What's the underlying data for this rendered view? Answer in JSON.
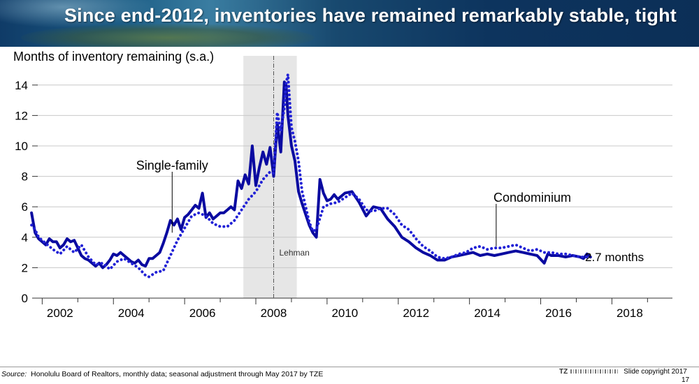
{
  "title": "Since end-2012, inventories have remained remarkably stable, tight",
  "footer": {
    "source_label": "Source:",
    "source_text": "Honolulu Board of Realtors, monthly data; seasonal adjustment through May 2017 by TZE",
    "brand": "TZ",
    "copyright": "Slide copyright 2017",
    "page_number": "17"
  },
  "colors": {
    "single_family": "#0a0aa0",
    "condominium": "#2121d6",
    "shade": "#e6e6e6",
    "grid": "#c8c8c8",
    "header": "#0f3b67"
  },
  "chart_data": {
    "type": "line",
    "ylabel": "Months of inventory remaining (s.a.)",
    "xlabel": "",
    "xlim": [
      2001.6,
      2019.7
    ],
    "ylim": [
      0,
      15
    ],
    "yticks": [
      0,
      2,
      4,
      6,
      8,
      10,
      12,
      14
    ],
    "xticks": [
      "2002",
      "2004",
      "2006",
      "2008",
      "2010",
      "2012",
      "2014",
      "2016",
      "2018"
    ],
    "grid": "horizontal",
    "shaded_region": {
      "x0": 2007.65,
      "x1": 2009.15,
      "label": ""
    },
    "event_line": {
      "x": 2008.5,
      "label": "Lehman"
    },
    "end_label": "2.7 months",
    "series": [
      {
        "name": "Single-family",
        "style": "solid",
        "x": [
          2001.7,
          2001.8,
          2001.9,
          2002.0,
          2002.1,
          2002.2,
          2002.3,
          2002.4,
          2002.5,
          2002.6,
          2002.7,
          2002.8,
          2002.9,
          2003.0,
          2003.1,
          2003.2,
          2003.3,
          2003.4,
          2003.5,
          2003.6,
          2003.7,
          2003.8,
          2003.9,
          2004.0,
          2004.1,
          2004.2,
          2004.3,
          2004.4,
          2004.5,
          2004.6,
          2004.7,
          2004.8,
          2004.9,
          2005.0,
          2005.1,
          2005.2,
          2005.3,
          2005.4,
          2005.5,
          2005.6,
          2005.7,
          2005.8,
          2005.9,
          2006.0,
          2006.1,
          2006.2,
          2006.3,
          2006.4,
          2006.5,
          2006.6,
          2006.7,
          2006.8,
          2006.9,
          2007.0,
          2007.1,
          2007.2,
          2007.3,
          2007.4,
          2007.5,
          2007.6,
          2007.7,
          2007.8,
          2007.9,
          2008.0,
          2008.1,
          2008.2,
          2008.3,
          2008.4,
          2008.5,
          2008.6,
          2008.7,
          2008.8,
          2008.85,
          2008.9,
          2009.0,
          2009.1,
          2009.2,
          2009.3,
          2009.4,
          2009.5,
          2009.6,
          2009.7,
          2009.8,
          2009.9,
          2010.0,
          2010.1,
          2010.2,
          2010.3,
          2010.5,
          2010.7,
          2010.9,
          2011.1,
          2011.3,
          2011.5,
          2011.7,
          2011.9,
          2012.1,
          2012.3,
          2012.5,
          2012.7,
          2012.9,
          2013.1,
          2013.3,
          2013.5,
          2013.7,
          2013.9,
          2014.1,
          2014.3,
          2014.5,
          2014.7,
          2014.9,
          2015.1,
          2015.3,
          2015.5,
          2015.7,
          2015.9,
          2016.1,
          2016.2,
          2016.3,
          2016.5,
          2016.7,
          2016.9,
          2017.1,
          2017.2,
          2017.3,
          2017.4
        ],
        "values": [
          5.6,
          4.3,
          3.9,
          3.7,
          3.5,
          3.9,
          3.7,
          3.7,
          3.3,
          3.5,
          3.9,
          3.7,
          3.8,
          3.3,
          2.8,
          2.6,
          2.5,
          2.3,
          2.1,
          2.3,
          2.0,
          2.2,
          2.5,
          2.9,
          2.8,
          3.0,
          2.8,
          2.6,
          2.4,
          2.3,
          2.5,
          2.2,
          2.1,
          2.6,
          2.6,
          2.8,
          3.0,
          3.6,
          4.3,
          5.1,
          4.8,
          5.2,
          4.5,
          5.3,
          5.5,
          5.8,
          6.1,
          5.9,
          6.9,
          5.3,
          5.6,
          5.2,
          5.4,
          5.6,
          5.6,
          5.8,
          6.0,
          5.8,
          7.7,
          7.2,
          8.1,
          7.5,
          10.0,
          7.4,
          8.6,
          9.6,
          8.8,
          9.9,
          8.0,
          11.5,
          9.6,
          14.2,
          14.0,
          12.0,
          10.0,
          9.0,
          7.0,
          6.2,
          5.5,
          4.8,
          4.3,
          4.0,
          7.8,
          6.9,
          6.4,
          6.5,
          6.8,
          6.5,
          6.9,
          7.0,
          6.3,
          5.4,
          6.0,
          5.9,
          5.2,
          4.7,
          4.0,
          3.7,
          3.3,
          3.0,
          2.8,
          2.5,
          2.5,
          2.7,
          2.8,
          2.9,
          3.0,
          2.8,
          2.9,
          2.8,
          2.9,
          3.0,
          3.1,
          3.0,
          2.9,
          2.8,
          2.3,
          2.9,
          2.8,
          2.8,
          2.7,
          2.8,
          2.7,
          2.6,
          2.9,
          2.7
        ]
      },
      {
        "name": "Condominium",
        "style": "dotted",
        "x": [
          2001.7,
          2001.8,
          2001.9,
          2002.0,
          2002.1,
          2002.3,
          2002.5,
          2002.7,
          2002.9,
          2003.1,
          2003.3,
          2003.5,
          2003.7,
          2003.9,
          2004.1,
          2004.3,
          2004.5,
          2004.7,
          2004.9,
          2005.0,
          2005.2,
          2005.4,
          2005.6,
          2005.8,
          2006.0,
          2006.2,
          2006.4,
          2006.6,
          2006.8,
          2007.0,
          2007.2,
          2007.4,
          2007.6,
          2007.8,
          2008.0,
          2008.2,
          2008.4,
          2008.5,
          2008.6,
          2008.7,
          2008.8,
          2008.85,
          2008.9,
          2009.0,
          2009.1,
          2009.2,
          2009.3,
          2009.4,
          2009.5,
          2009.6,
          2009.7,
          2009.9,
          2010.1,
          2010.3,
          2010.5,
          2010.7,
          2010.9,
          2011.1,
          2011.3,
          2011.5,
          2011.7,
          2011.9,
          2012.1,
          2012.3,
          2012.5,
          2012.7,
          2012.9,
          2013.1,
          2013.3,
          2013.5,
          2013.7,
          2013.9,
          2014.1,
          2014.3,
          2014.5,
          2014.7,
          2014.9,
          2015.1,
          2015.3,
          2015.5,
          2015.7,
          2015.9,
          2016.1,
          2016.3,
          2016.5,
          2016.7,
          2016.9,
          2017.1,
          2017.3,
          2017.4
        ],
        "values": [
          4.8,
          4.5,
          4.0,
          3.8,
          3.6,
          3.2,
          2.9,
          3.4,
          3.0,
          3.5,
          2.7,
          2.2,
          2.3,
          1.9,
          2.4,
          2.6,
          2.3,
          2.0,
          1.5,
          1.4,
          1.7,
          1.8,
          2.8,
          3.8,
          4.6,
          5.4,
          5.6,
          5.4,
          4.9,
          4.7,
          4.7,
          5.1,
          5.8,
          6.5,
          7.0,
          7.8,
          8.3,
          8.2,
          12.2,
          11.0,
          12.5,
          14.1,
          14.7,
          11.2,
          10.3,
          9.0,
          7.0,
          6.0,
          5.0,
          4.4,
          4.5,
          6.0,
          6.2,
          6.3,
          6.6,
          6.9,
          6.5,
          5.8,
          5.7,
          5.9,
          5.9,
          5.5,
          4.8,
          4.5,
          3.9,
          3.4,
          3.1,
          2.7,
          2.6,
          2.7,
          2.9,
          3.0,
          3.3,
          3.4,
          3.2,
          3.3,
          3.3,
          3.4,
          3.5,
          3.3,
          3.1,
          3.2,
          3.0,
          3.0,
          2.9,
          2.9,
          2.8,
          2.7,
          2.7,
          2.6
        ]
      }
    ]
  }
}
